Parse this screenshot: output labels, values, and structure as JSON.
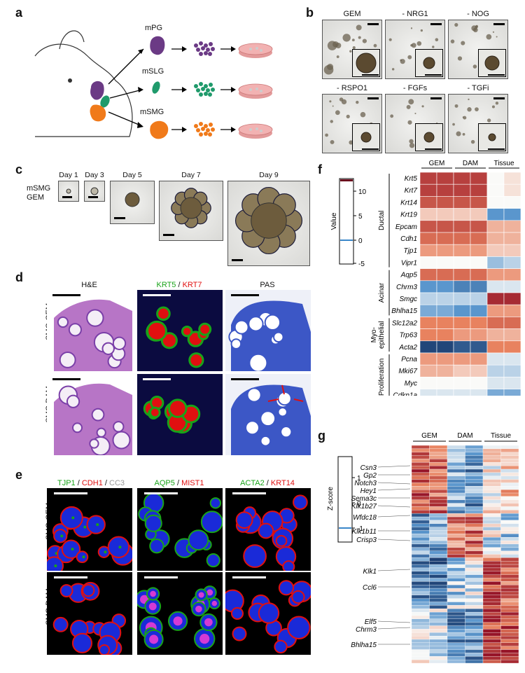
{
  "panels": {
    "a": "a",
    "b": "b",
    "c": "c",
    "d": "d",
    "e": "e",
    "f": "f",
    "g": "g"
  },
  "panel_a": {
    "labels": [
      "mPG",
      "mSLG",
      "mSMG"
    ],
    "colors": {
      "mPG": "#6b3a85",
      "mSLG": "#1f9a6b",
      "mSMG": "#f07a1a",
      "dish": "#f2b2b2"
    }
  },
  "panel_b": {
    "conditions": [
      "GEM",
      "- NRG1",
      "- NOG",
      "- RSPO1",
      "- FGFs",
      "- TGFi"
    ]
  },
  "panel_c": {
    "row_label": "mSMG\nGEM",
    "days": [
      "Day 1",
      "Day 3",
      "Day 5",
      "Day 7",
      "Day 9"
    ]
  },
  "panel_d": {
    "columns": [
      "H&E",
      "KRT5",
      "/",
      "KRT7",
      "PAS"
    ],
    "rows": [
      "mSMG GEM",
      "mSMG DAM"
    ],
    "colors": {
      "green": "#19a319",
      "red": "#e01010"
    }
  },
  "panel_e": {
    "col1": [
      "TJP1",
      "/",
      "CDH1",
      "/",
      "CC3"
    ],
    "col2": [
      "AQP5",
      "/",
      "MIST1"
    ],
    "col3": [
      "ACTA2",
      "/",
      "KRT14"
    ],
    "rows": [
      "mSMG GEM",
      "mSMG DAM"
    ]
  },
  "panel_f": {
    "legend_title": "Value",
    "legend_ticks": [
      "10",
      "5",
      "0",
      "-5"
    ],
    "col_groups": [
      "GEM",
      "DAM",
      "Tissue"
    ],
    "categories": [
      "Ductal",
      "Acinar",
      "Myo-\nepithelial",
      "Proliferation"
    ],
    "genes": [
      "Krt5",
      "Krt7",
      "Krt14",
      "Krt19",
      "Epcam",
      "Cdh1",
      "Tjp1",
      "Vipr1",
      "Aqp5",
      "Chrm3",
      "Smgc",
      "Bhlha15",
      "Slc12a2",
      "Trp63",
      "Acta2",
      "Pcna",
      "Mki67",
      "Myc",
      "Cdkn1a"
    ],
    "values": [
      [
        12,
        12,
        12,
        12,
        4,
        5
      ],
      [
        12,
        12,
        12,
        12,
        4,
        5
      ],
      [
        11,
        11,
        11,
        11,
        4,
        4
      ],
      [
        6,
        6,
        6,
        6,
        -1,
        -1
      ],
      [
        11,
        11,
        11,
        11,
        7,
        7
      ],
      [
        10,
        10,
        10,
        10,
        7,
        7
      ],
      [
        8,
        8,
        8,
        8,
        6,
        6
      ],
      [
        4,
        4,
        4,
        4,
        1,
        2
      ],
      [
        10,
        10,
        10,
        10,
        8,
        8
      ],
      [
        -1,
        -1,
        -2,
        -2,
        3,
        3
      ],
      [
        2,
        2,
        2,
        2,
        13,
        13
      ],
      [
        0,
        0,
        -1,
        -1,
        8,
        8
      ],
      [
        9,
        9,
        9,
        9,
        10,
        10
      ],
      [
        9,
        9,
        8,
        8,
        7,
        7
      ],
      [
        -5,
        -5,
        -4,
        -4,
        9,
        9
      ],
      [
        8,
        8,
        8,
        8,
        3,
        3
      ],
      [
        7,
        7,
        6,
        6,
        2,
        2
      ],
      [
        4,
        4,
        4,
        4,
        3,
        3
      ],
      [
        3,
        3,
        3,
        3,
        0,
        0
      ]
    ]
  },
  "panel_g": {
    "legend_title": "Z-score",
    "legend_ticks": [
      "1",
      "0",
      "-1"
    ],
    "col_groups": [
      "GEM",
      "DAM",
      "Tissue"
    ],
    "genes": [
      "Csn3",
      "Gp2",
      "Notch3",
      "Hey1",
      "Sema3c",
      "Klk1b27",
      "Wfdc18",
      "Klk1b11",
      "Crisp3",
      "Klk1",
      "Ccl6",
      "Elf5",
      "Chrm3",
      "Bhlha15"
    ]
  }
}
